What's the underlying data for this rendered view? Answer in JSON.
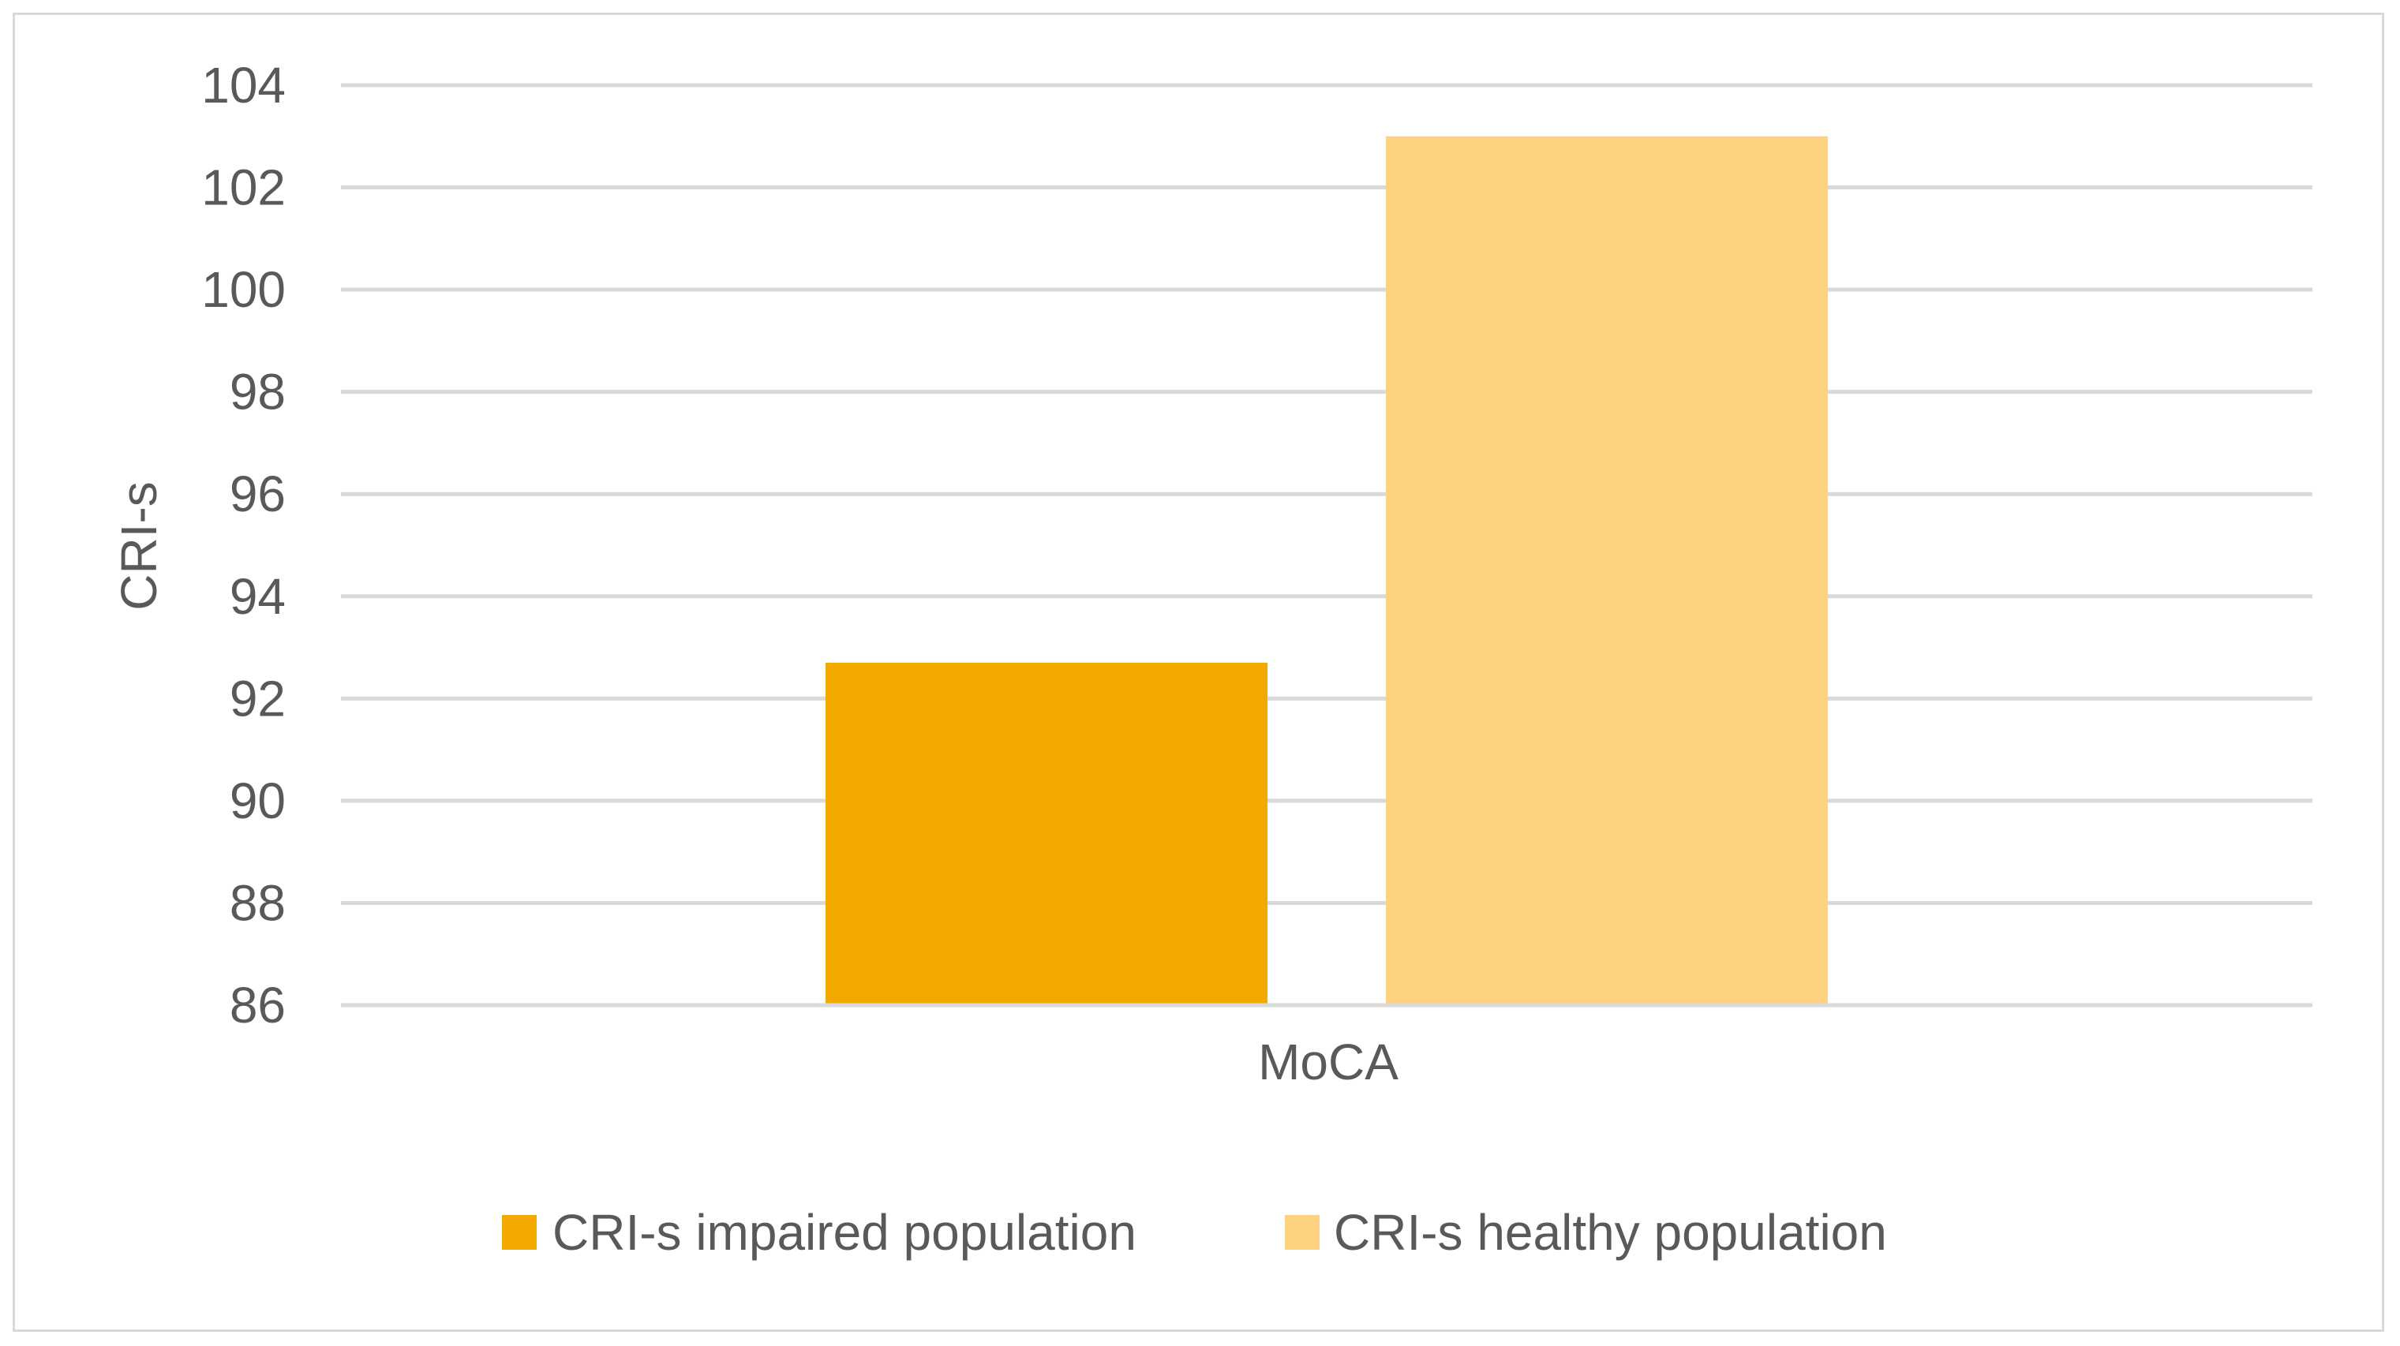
{
  "chart_data": {
    "type": "bar",
    "title": "",
    "xlabel": "",
    "ylabel": "CRI-s",
    "categories": [
      "MoCA"
    ],
    "series": [
      {
        "name": "CRI-s impaired population",
        "values": [
          92.7
        ],
        "color": "#F2AA00"
      },
      {
        "name": "CRI-s healthy population",
        "values": [
          103.0
        ],
        "color": "#FDD281"
      }
    ],
    "ylim": [
      86,
      104
    ],
    "yticks": [
      86,
      88,
      90,
      92,
      94,
      96,
      98,
      100,
      102,
      104
    ],
    "grid": true,
    "legend": "bottom-center",
    "colors": {
      "gridline": "#d9d9d9",
      "text": "#595959",
      "border": "#d9d9d9"
    }
  }
}
